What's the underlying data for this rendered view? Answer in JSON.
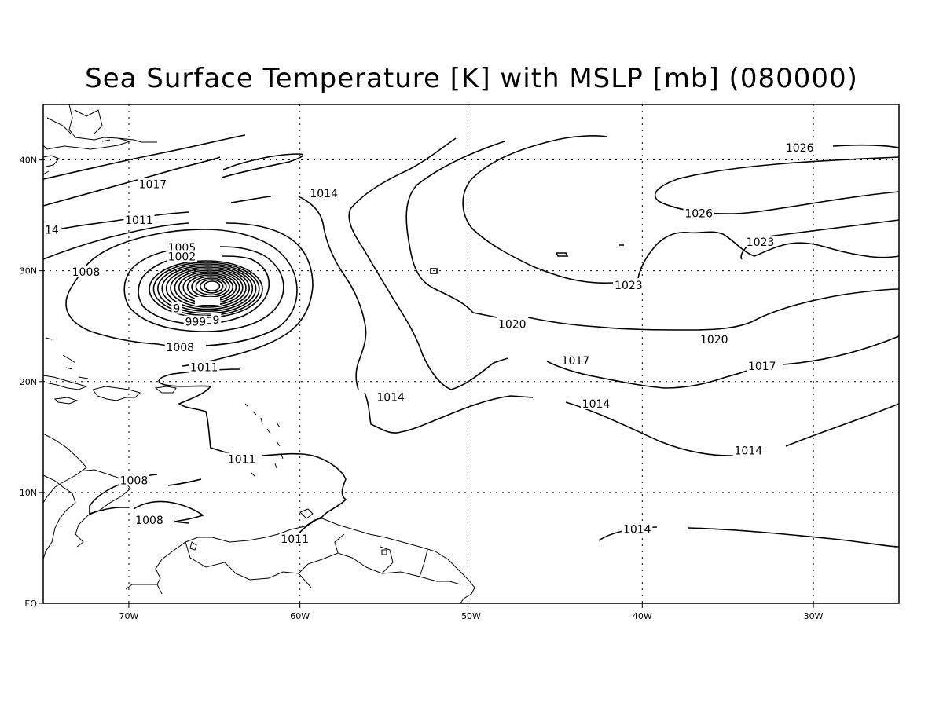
{
  "title": "Sea Surface Temperature [K] with MSLP [mb] (080000)",
  "colors": {
    "line": "#000000",
    "background": "#ffffff"
  },
  "axes": {
    "lon_range": [
      -75,
      -25
    ],
    "lat_range": [
      0,
      45
    ],
    "x_ticks": [
      {
        "lon": -70,
        "label": "70W"
      },
      {
        "lon": -60,
        "label": "60W"
      },
      {
        "lon": -50,
        "label": "50W"
      },
      {
        "lon": -40,
        "label": "40W"
      },
      {
        "lon": -30,
        "label": "30W"
      }
    ],
    "y_ticks": [
      {
        "lat": 0,
        "label": "EQ"
      },
      {
        "lat": 10,
        "label": "10N"
      },
      {
        "lat": 20,
        "label": "20N"
      },
      {
        "lat": 30,
        "label": "30N"
      },
      {
        "lat": 40,
        "label": "40N"
      }
    ],
    "grid": true
  },
  "contour_labels": [
    {
      "text": "1026",
      "lon": -30.8,
      "lat": 41.1
    },
    {
      "text": "1026",
      "lon": -36.7,
      "lat": 35.2
    },
    {
      "text": "1023",
      "lon": -33.1,
      "lat": 32.6
    },
    {
      "text": "1023",
      "lon": -40.8,
      "lat": 28.7
    },
    {
      "text": "1020",
      "lon": -47.6,
      "lat": 25.2
    },
    {
      "text": "1020",
      "lon": -35.8,
      "lat": 23.8
    },
    {
      "text": "1017",
      "lon": -68.6,
      "lat": 37.8
    },
    {
      "text": "1017",
      "lon": -43.9,
      "lat": 21.9
    },
    {
      "text": "1017",
      "lon": -33.0,
      "lat": 21.4
    },
    {
      "text": "1014",
      "lon": -58.6,
      "lat": 37.0
    },
    {
      "text": "1014",
      "lon": -54.7,
      "lat": 18.6
    },
    {
      "text": "1014",
      "lon": -42.7,
      "lat": 18.0
    },
    {
      "text": "1014",
      "lon": -33.8,
      "lat": 13.8
    },
    {
      "text": "1014",
      "lon": -40.3,
      "lat": 6.7
    },
    {
      "text": "14",
      "lon": -74.5,
      "lat": 33.7
    },
    {
      "text": "1011",
      "lon": -69.4,
      "lat": 34.6
    },
    {
      "text": "1011",
      "lon": -65.6,
      "lat": 21.3
    },
    {
      "text": "1011",
      "lon": -63.4,
      "lat": 13.0
    },
    {
      "text": "1011",
      "lon": -60.3,
      "lat": 5.8
    },
    {
      "text": "1008",
      "lon": -72.5,
      "lat": 29.9
    },
    {
      "text": "1008",
      "lon": -67.0,
      "lat": 23.1
    },
    {
      "text": "1008",
      "lon": -69.7,
      "lat": 11.1
    },
    {
      "text": "1008",
      "lon": -68.8,
      "lat": 7.5
    },
    {
      "text": "1005",
      "lon": -66.9,
      "lat": 32.1
    },
    {
      "text": "1002",
      "lon": -66.9,
      "lat": 31.3
    },
    {
      "text": "9",
      "lon": -67.2,
      "lat": 26.6
    },
    {
      "text": "999",
      "lon": -66.1,
      "lat": 25.4
    },
    {
      "text": "9",
      "lon": -64.9,
      "lat": 25.6
    }
  ]
}
